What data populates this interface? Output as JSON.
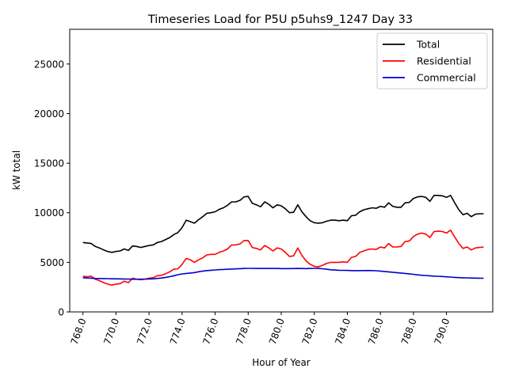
{
  "chart_data": {
    "type": "line",
    "title": "Timeseries Load for P5U p5uhs9_1247  Day 33",
    "xlabel": "Hour of Year",
    "ylabel": "kW total",
    "xlim": [
      767.2,
      792.8
    ],
    "ylim": [
      0,
      28500
    ],
    "xticks": [
      768,
      770,
      772,
      774,
      776,
      778,
      780,
      782,
      784,
      786,
      788,
      790
    ],
    "xtick_labels": [
      "768.0",
      "770.0",
      "772.0",
      "774.0",
      "776.0",
      "778.0",
      "780.0",
      "782.0",
      "784.0",
      "786.0",
      "788.0",
      "790.0"
    ],
    "yticks": [
      0,
      5000,
      10000,
      15000,
      20000,
      25000
    ],
    "ytick_labels": [
      "0",
      "5000",
      "10000",
      "15000",
      "20000",
      "25000"
    ],
    "legend_position": "top-right",
    "x_start": 768.0,
    "x_step": 0.25,
    "series": [
      {
        "name": "Total",
        "color": "#000000",
        "values": [
          7000,
          6950,
          6900,
          6600,
          6450,
          6250,
          6100,
          6000,
          6100,
          6150,
          6350,
          6200,
          6650,
          6600,
          6500,
          6600,
          6700,
          6750,
          7000,
          7100,
          7300,
          7500,
          7800,
          8000,
          8500,
          9250,
          9100,
          8950,
          9300,
          9600,
          9950,
          10000,
          10100,
          10350,
          10500,
          10750,
          11100,
          11100,
          11250,
          11600,
          11650,
          10950,
          10800,
          10600,
          11100,
          10850,
          10500,
          10800,
          10700,
          10400,
          10000,
          10050,
          10800,
          10100,
          9600,
          9200,
          9000,
          8950,
          9000,
          9150,
          9250,
          9250,
          9200,
          9250,
          9200,
          9700,
          9750,
          10100,
          10300,
          10400,
          10500,
          10450,
          10650,
          10550,
          11000,
          10650,
          10550,
          10550,
          11000,
          11050,
          11450,
          11600,
          11650,
          11550,
          11150,
          11750,
          11750,
          11700,
          11550,
          11750,
          11000,
          10300,
          9800,
          9950,
          9600,
          9850,
          9900,
          9900
        ]
      },
      {
        "name": "Residential",
        "color": "#ff0000",
        "values": [
          3600,
          3550,
          3600,
          3300,
          3150,
          2950,
          2800,
          2700,
          2800,
          2850,
          3100,
          2950,
          3400,
          3300,
          3250,
          3300,
          3400,
          3450,
          3650,
          3700,
          3850,
          4050,
          4300,
          4350,
          4800,
          5400,
          5250,
          5000,
          5250,
          5450,
          5750,
          5800,
          5800,
          6000,
          6150,
          6350,
          6750,
          6750,
          6850,
          7200,
          7200,
          6500,
          6400,
          6250,
          6700,
          6450,
          6150,
          6450,
          6350,
          6000,
          5600,
          5650,
          6450,
          5700,
          5150,
          4800,
          4600,
          4550,
          4700,
          4900,
          5000,
          5000,
          5000,
          5050,
          5000,
          5500,
          5600,
          6000,
          6150,
          6300,
          6350,
          6300,
          6550,
          6450,
          6900,
          6550,
          6550,
          6600,
          7100,
          7150,
          7600,
          7850,
          7950,
          7850,
          7500,
          8100,
          8150,
          8100,
          7950,
          8250,
          7550,
          6900,
          6400,
          6550,
          6250,
          6450,
          6500,
          6550
        ]
      },
      {
        "name": "Commercial",
        "color": "#0000cc",
        "values": [
          3450,
          3420,
          3400,
          3380,
          3370,
          3360,
          3350,
          3340,
          3335,
          3330,
          3320,
          3310,
          3300,
          3300,
          3300,
          3310,
          3320,
          3340,
          3380,
          3420,
          3480,
          3550,
          3650,
          3750,
          3830,
          3880,
          3920,
          3970,
          4050,
          4120,
          4170,
          4200,
          4230,
          4260,
          4280,
          4300,
          4320,
          4340,
          4360,
          4380,
          4390,
          4390,
          4385,
          4380,
          4385,
          4390,
          4385,
          4380,
          4370,
          4370,
          4370,
          4375,
          4380,
          4375,
          4370,
          4380,
          4390,
          4400,
          4350,
          4300,
          4250,
          4220,
          4200,
          4190,
          4180,
          4170,
          4160,
          4165,
          4170,
          4175,
          4165,
          4150,
          4120,
          4080,
          4040,
          4000,
          3960,
          3920,
          3880,
          3840,
          3790,
          3740,
          3700,
          3670,
          3640,
          3610,
          3590,
          3570,
          3540,
          3510,
          3480,
          3460,
          3440,
          3430,
          3420,
          3410,
          3400,
          3390
        ]
      }
    ]
  }
}
